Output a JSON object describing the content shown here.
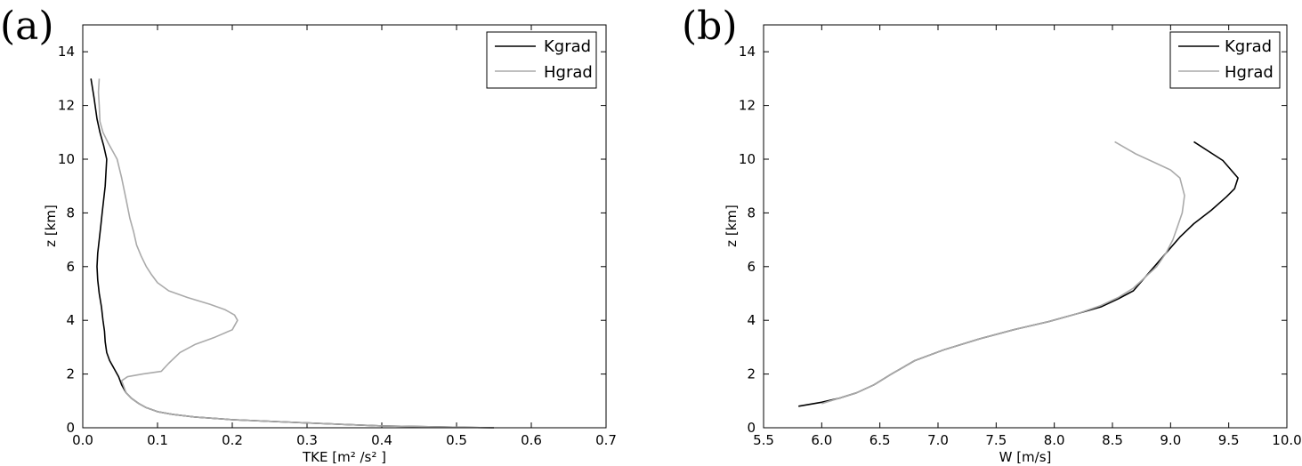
{
  "chart_data": [
    {
      "type": "line",
      "panel_label": "(a)",
      "xlabel": "TKE  [m² /s² ]",
      "ylabel": "z [km]",
      "xlim": [
        0,
        0.7
      ],
      "ylim": [
        0,
        15
      ],
      "xticks": [
        "0.0",
        "0.1",
        "0.2",
        "0.3",
        "0.4",
        "0.5",
        "0.6",
        "0.7"
      ],
      "yticks": [
        "0",
        "2",
        "4",
        "6",
        "8",
        "10",
        "12",
        "14"
      ],
      "grid": false,
      "legend": "top-right",
      "series": [
        {
          "name": "Kgrad",
          "color": "#000000",
          "x": [
            0.55,
            0.48,
            0.4,
            0.3,
            0.2,
            0.15,
            0.12,
            0.1,
            0.085,
            0.075,
            0.065,
            0.058,
            0.052,
            0.048,
            0.042,
            0.036,
            0.032,
            0.03,
            0.029,
            0.027,
            0.025,
            0.022,
            0.02,
            0.019,
            0.02,
            0.022,
            0.024,
            0.026,
            0.028,
            0.03,
            0.032,
            0.028,
            0.023,
            0.019,
            0.015,
            0.011
          ],
          "y": [
            0.0,
            0.03,
            0.07,
            0.18,
            0.3,
            0.4,
            0.5,
            0.6,
            0.75,
            0.9,
            1.1,
            1.3,
            1.6,
            1.9,
            2.2,
            2.5,
            2.8,
            3.2,
            3.6,
            4.0,
            4.5,
            5.0,
            5.5,
            6.0,
            6.5,
            7.0,
            7.5,
            8.0,
            8.5,
            9.0,
            10.0,
            10.5,
            11.0,
            11.5,
            12.3,
            13.0
          ]
        },
        {
          "name": "Hgrad",
          "color": "#aaaaaa",
          "x": [
            0.55,
            0.48,
            0.4,
            0.3,
            0.2,
            0.15,
            0.12,
            0.1,
            0.085,
            0.075,
            0.065,
            0.058,
            0.052,
            0.06,
            0.08,
            0.105,
            0.115,
            0.13,
            0.15,
            0.175,
            0.2,
            0.207,
            0.203,
            0.19,
            0.17,
            0.14,
            0.115,
            0.1,
            0.092,
            0.085,
            0.078,
            0.072,
            0.068,
            0.063,
            0.058,
            0.052,
            0.046,
            0.04,
            0.034,
            0.027,
            0.023,
            0.022,
            0.021,
            0.022
          ],
          "y": [
            0.0,
            0.03,
            0.07,
            0.18,
            0.3,
            0.4,
            0.5,
            0.6,
            0.75,
            0.9,
            1.1,
            1.3,
            1.75,
            1.9,
            2.0,
            2.1,
            2.4,
            2.8,
            3.1,
            3.35,
            3.65,
            4.0,
            4.2,
            4.4,
            4.6,
            4.85,
            5.1,
            5.4,
            5.7,
            6.0,
            6.4,
            6.8,
            7.3,
            7.8,
            8.5,
            9.3,
            10.0,
            10.3,
            10.6,
            11.0,
            11.4,
            12.0,
            12.5,
            13.0
          ]
        }
      ]
    },
    {
      "type": "line",
      "panel_label": "(b)",
      "xlabel": "W  [m/s]",
      "ylabel": "z [km]",
      "xlim": [
        5.5,
        10.0
      ],
      "ylim": [
        0,
        15
      ],
      "xticks": [
        "5.5",
        "6.0",
        "6.5",
        "7.0",
        "7.5",
        "8.0",
        "8.5",
        "9.0",
        "9.5",
        "10.0"
      ],
      "yticks": [
        "0",
        "2",
        "4",
        "6",
        "8",
        "10",
        "12",
        "14"
      ],
      "grid": false,
      "legend": "top-right",
      "series": [
        {
          "name": "Kgrad",
          "color": "#000000",
          "x": [
            5.8,
            6.0,
            6.15,
            6.3,
            6.45,
            6.6,
            6.8,
            7.05,
            7.35,
            7.65,
            7.95,
            8.2,
            8.4,
            8.55,
            8.68,
            8.78,
            8.88,
            8.98,
            9.08,
            9.2,
            9.35,
            9.48,
            9.55,
            9.58,
            9.45,
            9.2
          ],
          "y": [
            0.8,
            0.95,
            1.1,
            1.3,
            1.6,
            2.0,
            2.5,
            2.9,
            3.3,
            3.65,
            3.95,
            4.25,
            4.5,
            4.8,
            5.1,
            5.6,
            6.1,
            6.6,
            7.1,
            7.6,
            8.1,
            8.6,
            8.9,
            9.3,
            9.95,
            10.65
          ]
        },
        {
          "name": "Hgrad",
          "color": "#aaaaaa",
          "x": [
            6.0,
            6.15,
            6.3,
            6.45,
            6.6,
            6.8,
            7.05,
            7.35,
            7.65,
            7.95,
            8.2,
            8.4,
            8.55,
            8.68,
            8.78,
            8.88,
            8.96,
            9.02,
            9.06,
            9.1,
            9.12,
            9.08,
            9.0,
            8.85,
            8.7,
            8.52
          ],
          "y": [
            0.9,
            1.1,
            1.3,
            1.6,
            2.0,
            2.5,
            2.9,
            3.3,
            3.65,
            3.95,
            4.25,
            4.55,
            4.85,
            5.2,
            5.6,
            6.0,
            6.5,
            7.0,
            7.5,
            8.0,
            8.65,
            9.3,
            9.6,
            9.9,
            10.2,
            10.65
          ]
        }
      ]
    }
  ]
}
